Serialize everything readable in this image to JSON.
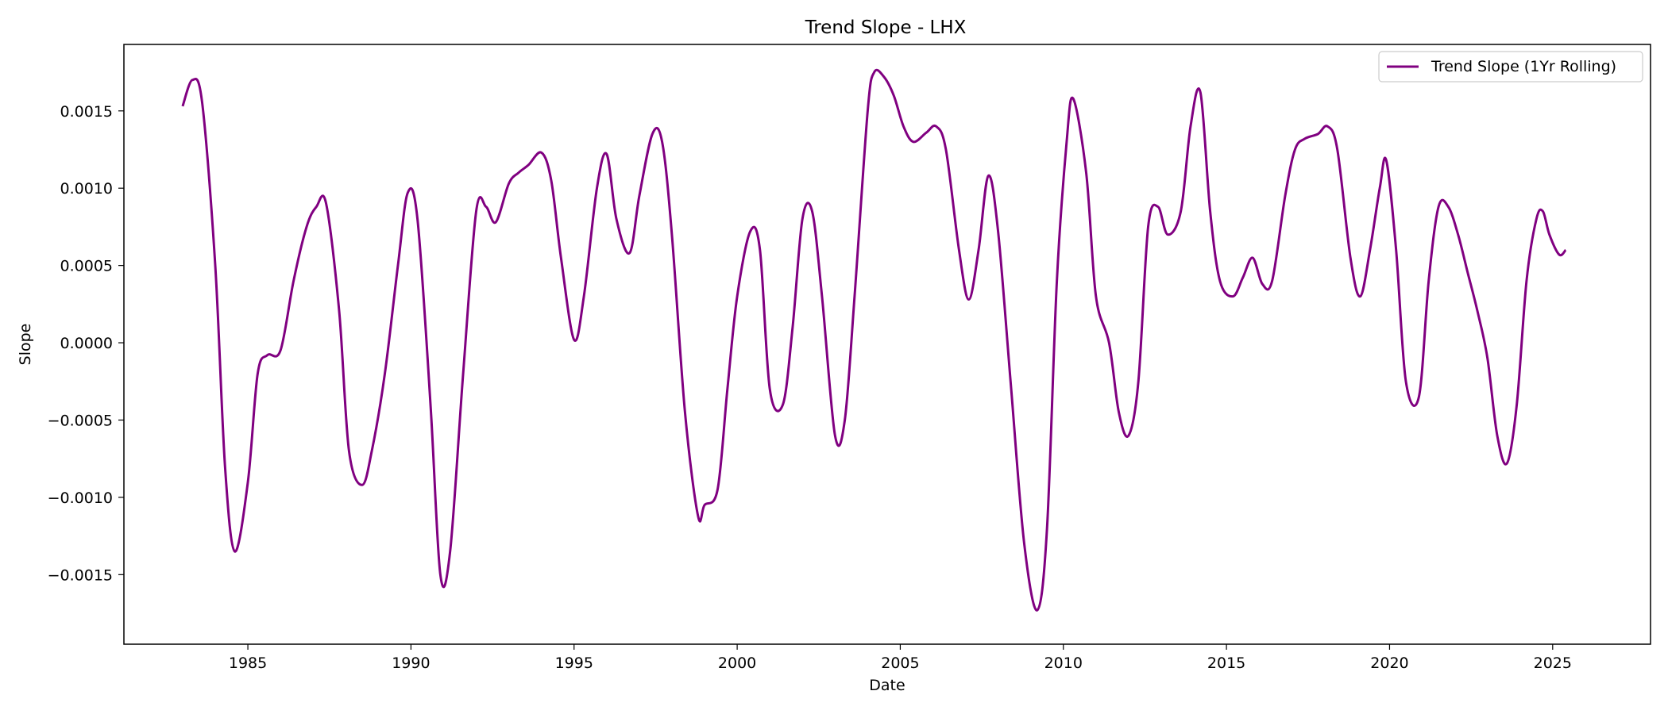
{
  "chart_data": {
    "type": "line",
    "title": "Trend Slope - LHX",
    "xlabel": "Date",
    "ylabel": "Slope",
    "x_ticks": [
      "1985",
      "1990",
      "1995",
      "2000",
      "2005",
      "2010",
      "2015",
      "2020",
      "2025"
    ],
    "y_ticks": [
      "−0.0015",
      "−0.0010",
      "−0.0005",
      "0.0000",
      "0.0005",
      "0.0010",
      "0.0015"
    ],
    "x_range": [
      1981.2,
      2028.0
    ],
    "ylim": [
      -0.00195,
      0.00193
    ],
    "grid": false,
    "legend_position": "top-right",
    "series": [
      {
        "name": "Trend Slope (1Yr Rolling)",
        "color": "#800080",
        "x": [
          1983.0,
          1983.3,
          1983.6,
          1984.0,
          1984.3,
          1984.6,
          1985.0,
          1985.3,
          1985.6,
          1986.0,
          1986.4,
          1986.8,
          1987.1,
          1987.4,
          1987.8,
          1988.1,
          1988.5,
          1988.8,
          1989.2,
          1989.6,
          1989.9,
          1990.2,
          1990.6,
          1990.9,
          1991.2,
          1991.6,
          1992.0,
          1992.3,
          1992.6,
          1993.0,
          1993.3,
          1993.6,
          1994.0,
          1994.3,
          1994.6,
          1995.0,
          1995.3,
          1995.7,
          1996.0,
          1996.3,
          1996.7,
          1997.0,
          1997.4,
          1997.7,
          1998.0,
          1998.4,
          1998.8,
          1999.0,
          1999.4,
          1999.7,
          2000.0,
          2000.4,
          2000.7,
          2001.0,
          2001.4,
          2001.7,
          2002.0,
          2002.3,
          2002.6,
          2003.0,
          2003.3,
          2003.6,
          2004.0,
          2004.2,
          2004.5,
          2004.8,
          2005.1,
          2005.4,
          2005.8,
          2006.1,
          2006.4,
          2006.8,
          2007.1,
          2007.4,
          2007.7,
          2008.0,
          2008.4,
          2008.8,
          2009.2,
          2009.5,
          2009.8,
          2010.1,
          2010.3,
          2010.7,
          2011.0,
          2011.4,
          2011.7,
          2012.0,
          2012.3,
          2012.6,
          2012.9,
          2013.2,
          2013.6,
          2013.9,
          2014.2,
          2014.5,
          2014.8,
          2015.2,
          2015.5,
          2015.8,
          2016.1,
          2016.4,
          2016.8,
          2017.1,
          2017.4,
          2017.8,
          2018.1,
          2018.4,
          2018.8,
          2019.1,
          2019.4,
          2019.7,
          2019.9,
          2020.2,
          2020.5,
          2020.9,
          2021.2,
          2021.5,
          2021.8,
          2022.1,
          2022.4,
          2022.7,
          2023.0,
          2023.3,
          2023.6,
          2023.9,
          2024.2,
          2024.5,
          2024.7,
          2024.9,
          2025.2,
          2025.4
        ],
        "y": [
          0.00153,
          0.0017,
          0.00155,
          0.0005,
          -0.0008,
          -0.00135,
          -0.0009,
          -0.0002,
          -8e-05,
          -5e-05,
          0.0004,
          0.00075,
          0.00088,
          0.0009,
          0.0002,
          -0.0007,
          -0.00092,
          -0.0007,
          -0.0002,
          0.0005,
          0.00097,
          0.0008,
          -0.0004,
          -0.0015,
          -0.00135,
          -0.0002,
          0.00085,
          0.00088,
          0.00078,
          0.00103,
          0.0011,
          0.00115,
          0.00123,
          0.00105,
          0.00055,
          2e-05,
          0.0003,
          0.001,
          0.00122,
          0.0008,
          0.00058,
          0.00095,
          0.00135,
          0.0013,
          0.0007,
          -0.00045,
          -0.00112,
          -0.00105,
          -0.00095,
          -0.0003,
          0.0003,
          0.00072,
          0.0006,
          -0.0003,
          -0.0004,
          0.0001,
          0.0008,
          0.00085,
          0.0003,
          -0.0006,
          -0.0005,
          0.0003,
          0.0015,
          0.00175,
          0.00172,
          0.0016,
          0.0014,
          0.0013,
          0.00136,
          0.0014,
          0.00125,
          0.0006,
          0.00028,
          0.0006,
          0.00108,
          0.00072,
          -0.0003,
          -0.0013,
          -0.00173,
          -0.0012,
          0.0004,
          0.0013,
          0.00158,
          0.0011,
          0.0003,
          0.0,
          -0.00045,
          -0.0006,
          -0.00025,
          0.00075,
          0.00088,
          0.0007,
          0.00085,
          0.0014,
          0.00162,
          0.00085,
          0.0004,
          0.0003,
          0.00042,
          0.00055,
          0.00038,
          0.0004,
          0.00095,
          0.00125,
          0.00132,
          0.00135,
          0.0014,
          0.00125,
          0.00055,
          0.0003,
          0.0006,
          0.001,
          0.00118,
          0.0006,
          -0.00025,
          -0.00035,
          0.0004,
          0.00088,
          0.00088,
          0.0007,
          0.00045,
          0.0002,
          -0.0001,
          -0.0006,
          -0.00078,
          -0.0004,
          0.0004,
          0.0008,
          0.00085,
          0.0007,
          0.00057,
          0.0006
        ]
      }
    ]
  }
}
